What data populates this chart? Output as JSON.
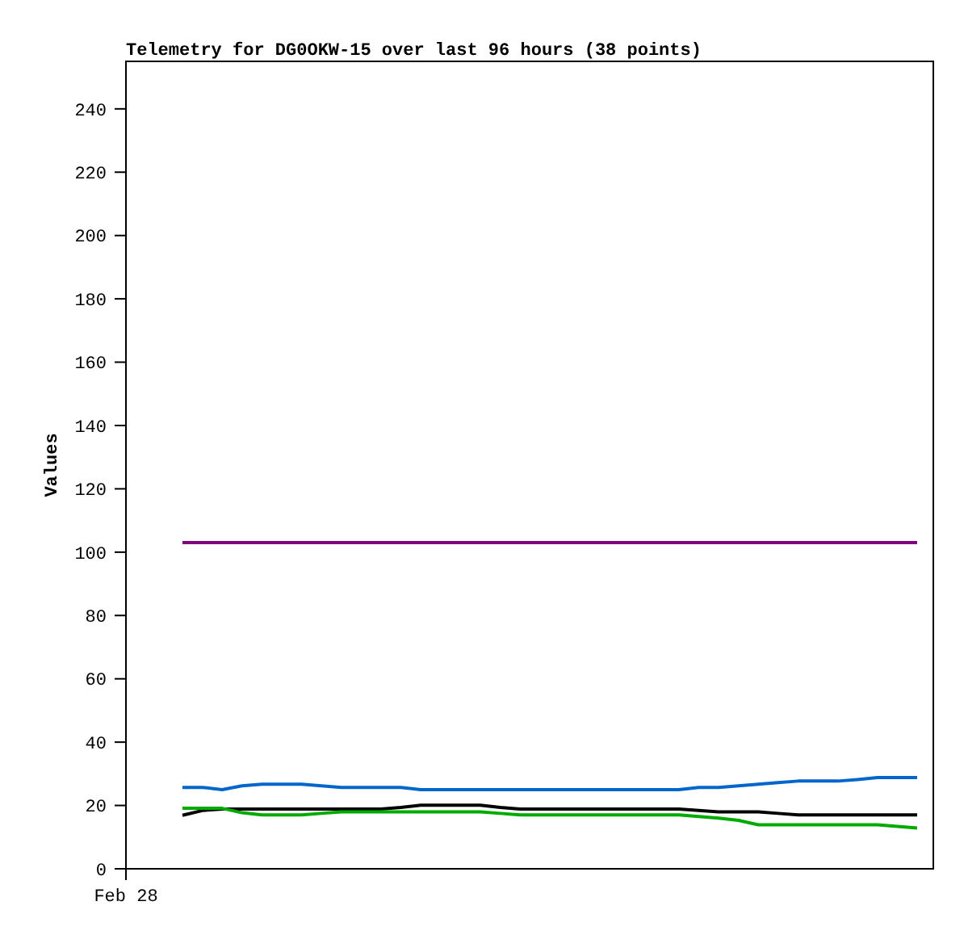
{
  "chart_data": {
    "type": "line",
    "title": "Telemetry for DG0OKW-15 over last 96 hours (38 points)",
    "ylabel": "Values",
    "annotations": [
      "Feb 28"
    ],
    "categories": [
      null,
      null,
      null,
      null,
      null,
      null,
      null,
      null,
      null,
      null,
      null,
      null,
      null,
      null,
      null,
      null,
      null,
      null,
      null,
      null,
      null,
      null,
      null,
      null,
      null,
      null,
      null,
      null,
      null,
      null,
      null,
      null,
      null,
      null,
      null,
      null,
      null,
      null
    ],
    "ylim": [
      0,
      255
    ],
    "yticks": [
      0,
      20,
      40,
      60,
      80,
      100,
      120,
      140,
      160,
      180,
      200,
      220,
      240
    ],
    "series": [
      {
        "color": "#800080",
        "values": [
          103,
          103,
          103,
          103,
          103,
          103,
          103,
          103,
          103,
          103,
          103,
          103,
          103,
          103,
          103,
          103,
          103,
          103,
          103,
          103,
          103,
          103,
          103,
          103,
          103,
          103,
          103,
          103,
          103,
          103,
          103,
          103,
          103,
          103,
          103,
          103,
          103,
          103
        ]
      },
      {
        "color": "#0066cc",
        "values": [
          25.7,
          25.7,
          25.0,
          26.2,
          26.7,
          26.7,
          26.7,
          26.2,
          25.7,
          25.7,
          25.7,
          25.7,
          25.0,
          25.0,
          25.0,
          25.0,
          25.0,
          25.0,
          25.0,
          25.0,
          25.0,
          25.0,
          25.0,
          25.0,
          25.0,
          25.0,
          25.7,
          25.7,
          26.2,
          26.7,
          27.2,
          27.7,
          27.7,
          27.7,
          28.2,
          28.8,
          28.8,
          28.8
        ]
      },
      {
        "color": "#000000",
        "values": [
          16.9,
          18.4,
          18.9,
          18.9,
          18.9,
          18.9,
          18.9,
          18.9,
          18.9,
          18.9,
          18.9,
          19.4,
          20.1,
          20.1,
          20.1,
          20.1,
          19.4,
          18.9,
          18.9,
          18.9,
          18.9,
          18.9,
          18.9,
          18.9,
          18.9,
          18.9,
          18.4,
          18.0,
          18.0,
          18.0,
          17.5,
          17.0,
          17.0,
          17.0,
          17.0,
          17.0,
          17.0,
          17.0
        ]
      },
      {
        "color": "#00aa00",
        "values": [
          19.1,
          19.1,
          19.1,
          17.7,
          17.0,
          17.0,
          17.0,
          17.5,
          18.0,
          18.0,
          18.0,
          18.0,
          18.0,
          18.0,
          18.0,
          18.0,
          17.5,
          17.0,
          17.0,
          17.0,
          17.0,
          17.0,
          17.0,
          17.0,
          17.0,
          17.0,
          16.5,
          16.0,
          15.3,
          13.9,
          13.9,
          13.9,
          13.9,
          13.9,
          13.9,
          13.9,
          13.4,
          12.9
        ]
      }
    ]
  }
}
